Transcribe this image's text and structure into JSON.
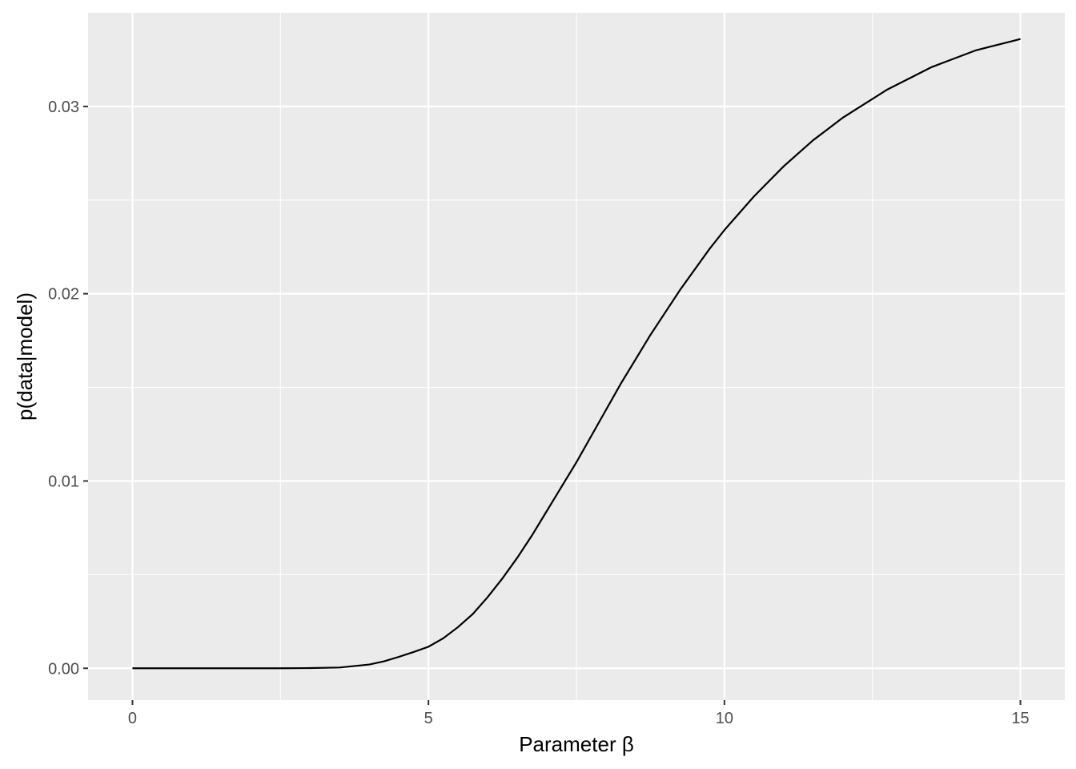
{
  "chart_data": {
    "type": "line",
    "title": "",
    "xlabel": "Parameter β",
    "ylabel": "p(data|model)",
    "xlim": [
      -0.75,
      15.75
    ],
    "ylim": [
      -0.0017,
      0.035
    ],
    "x_ticks": [
      0,
      5,
      10,
      15
    ],
    "x_tick_labels": [
      "0",
      "5",
      "10",
      "15"
    ],
    "x_minor_ticks": [
      2.5,
      7.5,
      12.5
    ],
    "y_ticks": [
      0.0,
      0.01,
      0.02,
      0.03
    ],
    "y_tick_labels": [
      "0.00",
      "0.01",
      "0.02",
      "0.03"
    ],
    "y_minor_ticks": [
      0.005,
      0.015,
      0.025
    ],
    "grid": true,
    "legend": "none",
    "colors": {
      "panel": "#ebebeb",
      "grid": "#ffffff",
      "line": "#000000"
    },
    "series": [
      {
        "x": [
          0,
          0.5,
          1,
          1.5,
          2,
          2.5,
          3,
          3.5,
          4,
          4.25,
          4.5,
          4.75,
          5,
          5.25,
          5.5,
          5.75,
          6,
          6.25,
          6.5,
          6.75,
          7,
          7.25,
          7.5,
          7.75,
          8,
          8.25,
          8.5,
          8.75,
          9,
          9.25,
          9.5,
          9.75,
          10,
          10.25,
          10.5,
          10.75,
          11,
          11.25,
          11.5,
          11.75,
          12,
          12.25,
          12.5,
          12.75,
          13,
          13.25,
          13.5,
          13.75,
          14,
          14.25,
          14.5,
          14.75,
          15
        ],
        "y": [
          0,
          0,
          0,
          0,
          0,
          0,
          1e-05,
          4e-05,
          0.0002,
          0.00037,
          0.00061,
          0.00087,
          0.00115,
          0.0016,
          0.0022,
          0.0029,
          0.0038,
          0.0048,
          0.0059,
          0.0071,
          0.0084,
          0.0097,
          0.011,
          0.0124,
          0.0138,
          0.0152,
          0.0165,
          0.0178,
          0.019,
          0.0202,
          0.0213,
          0.0224,
          0.0234,
          0.0243,
          0.0252,
          0.026,
          0.0268,
          0.0275,
          0.0282,
          0.0288,
          0.0294,
          0.0299,
          0.0304,
          0.0309,
          0.0313,
          0.0317,
          0.0321,
          0.0324,
          0.0327,
          0.033,
          0.0332,
          0.0334,
          0.0336
        ]
      }
    ]
  }
}
